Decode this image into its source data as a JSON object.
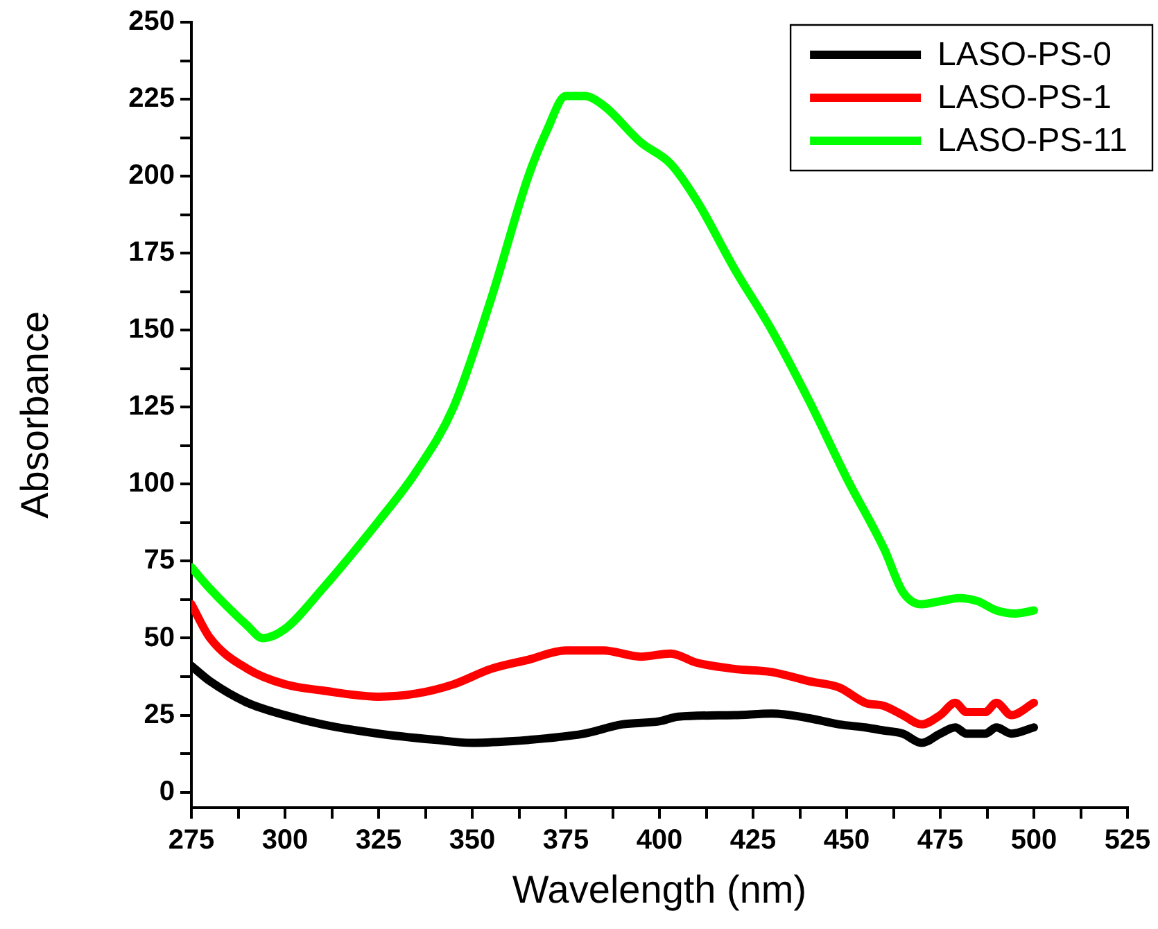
{
  "chart_data": {
    "type": "line",
    "xlabel": "Wavelength (nm)",
    "ylabel": "Absorbance",
    "xlim": [
      275,
      525
    ],
    "xticks": [
      275,
      {
        "value": 287.5,
        "label": null
      },
      300,
      {
        "value": 312.5,
        "label": null
      },
      325,
      {
        "value": 337.5,
        "label": null
      },
      350,
      {
        "value": 362.5,
        "label": null
      },
      375,
      {
        "value": 387.5,
        "label": null
      },
      400,
      {
        "value": 412.5,
        "label": null
      },
      425,
      {
        "value": 437.5,
        "label": null
      },
      450,
      {
        "value": 462.5,
        "label": null
      },
      475,
      {
        "value": 487.5,
        "label": null
      },
      500,
      {
        "value": 512.5,
        "label": null
      },
      525
    ],
    "ylim": [
      -5,
      250
    ],
    "yticks": [
      0,
      {
        "value": 12.5,
        "label": null
      },
      25,
      {
        "value": 37.5,
        "label": null
      },
      50,
      {
        "value": 62.5,
        "label": null
      },
      75,
      {
        "value": 87.5,
        "label": null
      },
      100,
      {
        "value": 112.5,
        "label": null
      },
      125,
      {
        "value": 137.5,
        "label": null
      },
      150,
      {
        "value": 162.5,
        "label": null
      },
      175,
      {
        "value": 187.5,
        "label": null
      },
      200,
      {
        "value": 212.5,
        "label": null
      },
      225,
      {
        "value": 237.5,
        "label": null
      },
      250
    ],
    "grid": false,
    "legend": "top right",
    "marker": "none",
    "line_style": "solid",
    "series": [
      {
        "name": "LASO-PS-0",
        "color": "#000000",
        "x": [
          275,
          280,
          290,
          300,
          310,
          325,
          340,
          350,
          360,
          370,
          380,
          390,
          400,
          405,
          420,
          430,
          440,
          448,
          455,
          460,
          465,
          470,
          475,
          479,
          482,
          487,
          490,
          494,
          500
        ],
        "values": [
          41,
          36,
          29,
          25,
          22,
          19,
          17,
          16,
          16.5,
          17.5,
          19,
          22,
          23,
          24.5,
          25,
          25.5,
          24,
          22,
          21,
          20,
          19,
          16,
          19,
          21,
          19,
          19,
          21,
          19,
          21
        ]
      },
      {
        "name": "LASO-PS-1",
        "color": "#ff0000",
        "x": [
          275,
          280,
          290,
          300,
          310,
          325,
          335,
          345,
          355,
          365,
          375,
          385,
          395,
          403,
          410,
          420,
          430,
          440,
          448,
          455,
          460,
          465,
          470,
          475,
          479,
          482,
          487,
          490,
          494,
          500
        ],
        "values": [
          61,
          50,
          40,
          35,
          33,
          31,
          32,
          35,
          40,
          43,
          46,
          46,
          44,
          45,
          42,
          40,
          39,
          36,
          34,
          29,
          28,
          25,
          22,
          25,
          29,
          26,
          26,
          29,
          25,
          29
        ]
      },
      {
        "name": "LASO-PS-11",
        "color": "#00ff00",
        "x": [
          275,
          280,
          290,
          294,
          300,
          310,
          325,
          335,
          345,
          355,
          365,
          370,
          375,
          380,
          385,
          395,
          403,
          410,
          420,
          430,
          440,
          450,
          460,
          465,
          470,
          475,
          480,
          485,
          490,
          495,
          500
        ],
        "values": [
          73,
          66,
          54,
          50,
          53,
          66,
          88,
          104,
          125,
          160,
          200,
          215,
          226,
          226,
          223,
          211,
          204,
          192,
          170,
          150,
          127,
          102,
          79,
          65,
          61,
          62,
          63,
          62,
          59,
          58,
          59
        ]
      }
    ]
  }
}
